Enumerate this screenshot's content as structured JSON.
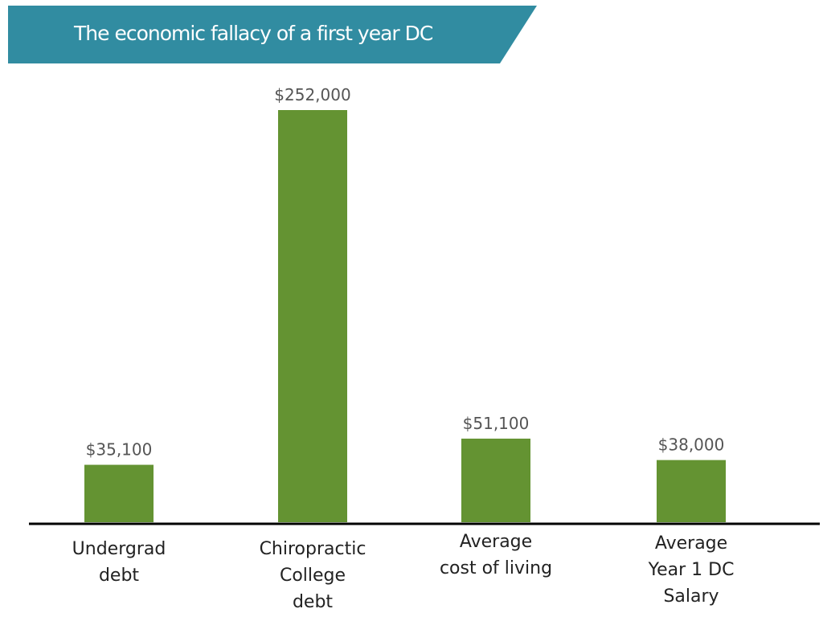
{
  "chart_data": {
    "type": "bar",
    "title": "The economic fallacy of a first year DC",
    "categories": [
      [
        "Undergrad",
        "debt"
      ],
      [
        "Chiropractic",
        "College",
        "debt"
      ],
      [
        "Average",
        "cost of living"
      ],
      [
        "Average",
        "Year 1 DC",
        "Salary"
      ]
    ],
    "values": [
      35100,
      252000,
      51100,
      38000
    ],
    "value_labels": [
      "$35,100",
      "$252,000",
      "$51,100",
      "$38,000"
    ],
    "xlabel": "",
    "ylabel": "",
    "ylim": [
      0,
      252000
    ],
    "grid": false,
    "legend": "none"
  },
  "colors": {
    "banner": "#318ca1",
    "bar": "#649332",
    "axis": "#000000"
  }
}
